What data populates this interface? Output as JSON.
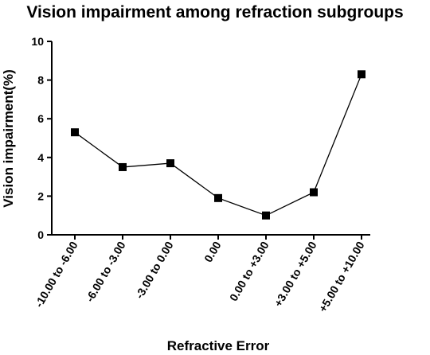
{
  "chart_data": {
    "type": "line",
    "title": "Vision impairment among refraction subgroups",
    "xlabel": "Refractive Error",
    "ylabel": "Vision impairment(%)",
    "categories": [
      "-10.00 to -6.00",
      "-6.00 to -3.00",
      "-3.00 to 0.00",
      "0.00",
      "0.00 to +3.00",
      "+3.00 to +5.00",
      "+5.00 to +10.00"
    ],
    "series": [
      {
        "values": [
          5.3,
          3.5,
          3.7,
          1.9,
          1.0,
          2.2,
          8.3
        ]
      }
    ],
    "ylim": [
      0,
      10
    ],
    "yticks": [
      0,
      2,
      4,
      6,
      8,
      10
    ],
    "grid": false,
    "legend": "none",
    "marker": "square",
    "color": "#000000"
  }
}
